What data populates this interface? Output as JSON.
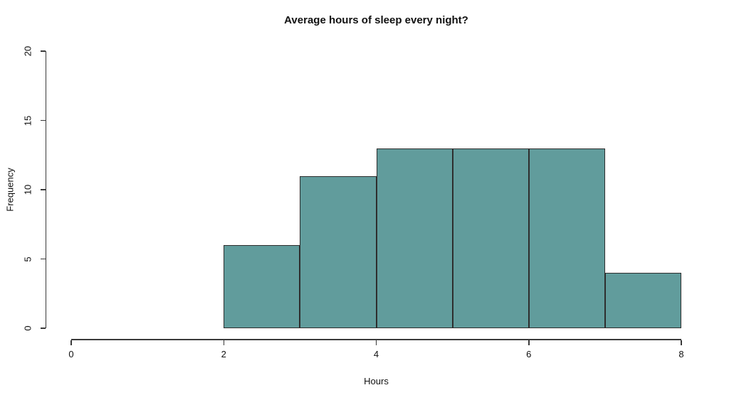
{
  "chart_data": {
    "type": "bar",
    "chart_kind": "histogram",
    "title": "Average hours of sleep every night?",
    "xlabel": "Hours",
    "ylabel": "Frequency",
    "bin_edges": [
      2,
      3,
      4,
      5,
      6,
      7,
      8
    ],
    "values": [
      6,
      11,
      13,
      13,
      13,
      4
    ],
    "x_ticks": [
      0,
      2,
      4,
      6,
      8
    ],
    "y_ticks": [
      0,
      5,
      10,
      15,
      20
    ],
    "xlim": [
      0,
      8
    ],
    "ylim": [
      0,
      20
    ],
    "legend": null,
    "grid": false,
    "colors": {
      "bar_fill": "#619c9c",
      "bar_border": "#2e2e2e",
      "axis": "#3a3a3a",
      "text": "#111111",
      "background": "#ffffff"
    }
  }
}
